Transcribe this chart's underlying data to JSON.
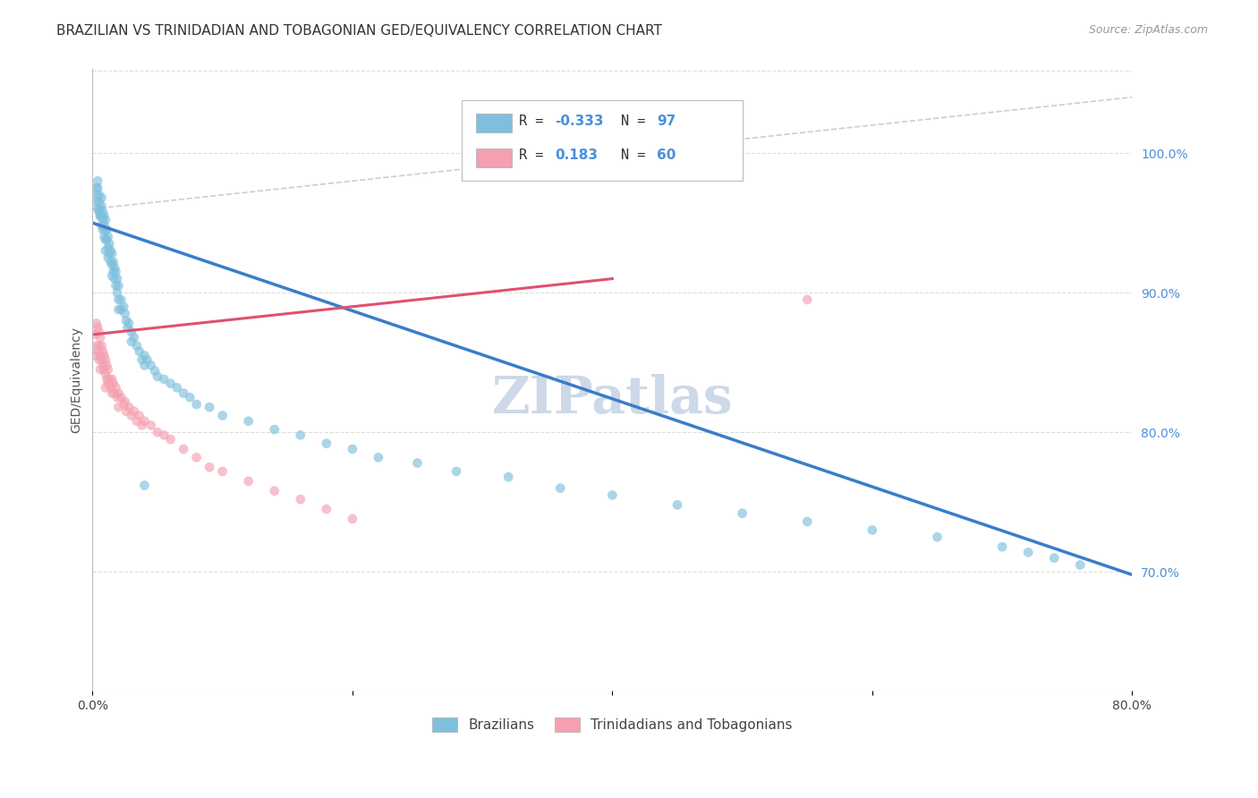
{
  "title": "BRAZILIAN VS TRINIDADIAN AND TOBAGONIAN GED/EQUIVALENCY CORRELATION CHART",
  "source": "Source: ZipAtlas.com",
  "ylabel": "GED/Equivalency",
  "xlim": [
    0.0,
    0.8
  ],
  "ylim": [
    0.615,
    1.06
  ],
  "x_ticks": [
    0.0,
    0.2,
    0.4,
    0.6,
    0.8
  ],
  "x_tick_labels": [
    "0.0%",
    "",
    "",
    "",
    "80.0%"
  ],
  "y_ticks_right": [
    0.7,
    0.8,
    0.9,
    1.0
  ],
  "y_tick_labels_right": [
    "70.0%",
    "80.0%",
    "90.0%",
    "100.0%"
  ],
  "blue_color": "#7fbfdd",
  "pink_color": "#f4a0b0",
  "blue_line_color": "#3a7dc9",
  "pink_line_color": "#e05070",
  "ref_line_color": "#d0b8c8",
  "watermark": "ZIPatlas",
  "legend_label_blue": "Brazilians",
  "legend_label_pink": "Trinidadians and Tobagonians",
  "blue_scatter_x": [
    0.003,
    0.003,
    0.003,
    0.004,
    0.004,
    0.004,
    0.005,
    0.005,
    0.005,
    0.006,
    0.006,
    0.006,
    0.007,
    0.007,
    0.007,
    0.007,
    0.008,
    0.008,
    0.008,
    0.009,
    0.009,
    0.009,
    0.01,
    0.01,
    0.01,
    0.01,
    0.011,
    0.011,
    0.012,
    0.012,
    0.012,
    0.013,
    0.013,
    0.014,
    0.014,
    0.015,
    0.015,
    0.015,
    0.016,
    0.016,
    0.017,
    0.017,
    0.018,
    0.018,
    0.019,
    0.019,
    0.02,
    0.02,
    0.02,
    0.022,
    0.022,
    0.024,
    0.025,
    0.026,
    0.027,
    0.028,
    0.03,
    0.03,
    0.032,
    0.034,
    0.036,
    0.038,
    0.04,
    0.04,
    0.042,
    0.045,
    0.048,
    0.05,
    0.055,
    0.06,
    0.065,
    0.07,
    0.075,
    0.08,
    0.09,
    0.1,
    0.12,
    0.14,
    0.16,
    0.18,
    0.2,
    0.22,
    0.25,
    0.28,
    0.32,
    0.36,
    0.4,
    0.45,
    0.5,
    0.55,
    0.6,
    0.65,
    0.7,
    0.72,
    0.74,
    0.76,
    0.04
  ],
  "blue_scatter_y": [
    0.975,
    0.97,
    0.965,
    0.98,
    0.975,
    0.96,
    0.97,
    0.965,
    0.958,
    0.955,
    0.96,
    0.955,
    0.968,
    0.962,
    0.955,
    0.948,
    0.958,
    0.952,
    0.945,
    0.955,
    0.948,
    0.94,
    0.952,
    0.945,
    0.938,
    0.93,
    0.945,
    0.938,
    0.94,
    0.932,
    0.925,
    0.935,
    0.928,
    0.93,
    0.922,
    0.928,
    0.92,
    0.912,
    0.922,
    0.915,
    0.918,
    0.91,
    0.915,
    0.905,
    0.91,
    0.9,
    0.905,
    0.895,
    0.888,
    0.895,
    0.888,
    0.89,
    0.885,
    0.88,
    0.875,
    0.878,
    0.872,
    0.865,
    0.868,
    0.862,
    0.858,
    0.852,
    0.855,
    0.848,
    0.852,
    0.848,
    0.844,
    0.84,
    0.838,
    0.835,
    0.832,
    0.828,
    0.825,
    0.82,
    0.818,
    0.812,
    0.808,
    0.802,
    0.798,
    0.792,
    0.788,
    0.782,
    0.778,
    0.772,
    0.768,
    0.76,
    0.755,
    0.748,
    0.742,
    0.736,
    0.73,
    0.725,
    0.718,
    0.714,
    0.71,
    0.705,
    0.762
  ],
  "pink_scatter_x": [
    0.002,
    0.002,
    0.003,
    0.003,
    0.004,
    0.004,
    0.005,
    0.005,
    0.005,
    0.006,
    0.006,
    0.006,
    0.007,
    0.007,
    0.008,
    0.008,
    0.009,
    0.009,
    0.01,
    0.01,
    0.01,
    0.011,
    0.011,
    0.012,
    0.012,
    0.013,
    0.014,
    0.015,
    0.015,
    0.016,
    0.017,
    0.018,
    0.019,
    0.02,
    0.02,
    0.022,
    0.024,
    0.025,
    0.026,
    0.028,
    0.03,
    0.032,
    0.034,
    0.036,
    0.038,
    0.04,
    0.045,
    0.05,
    0.055,
    0.06,
    0.07,
    0.08,
    0.09,
    0.1,
    0.12,
    0.14,
    0.16,
    0.18,
    0.2,
    0.55
  ],
  "pink_scatter_y": [
    0.87,
    0.855,
    0.878,
    0.862,
    0.875,
    0.858,
    0.872,
    0.862,
    0.852,
    0.868,
    0.855,
    0.845,
    0.862,
    0.852,
    0.858,
    0.848,
    0.855,
    0.845,
    0.852,
    0.842,
    0.832,
    0.848,
    0.838,
    0.845,
    0.835,
    0.838,
    0.832,
    0.838,
    0.828,
    0.835,
    0.828,
    0.832,
    0.825,
    0.828,
    0.818,
    0.825,
    0.82,
    0.822,
    0.815,
    0.818,
    0.812,
    0.815,
    0.808,
    0.812,
    0.805,
    0.808,
    0.805,
    0.8,
    0.798,
    0.795,
    0.788,
    0.782,
    0.775,
    0.772,
    0.765,
    0.758,
    0.752,
    0.745,
    0.738,
    0.895
  ],
  "blue_line_x": [
    0.0,
    0.8
  ],
  "blue_line_y": [
    0.95,
    0.698
  ],
  "pink_line_x": [
    0.0,
    0.4
  ],
  "pink_line_y": [
    0.87,
    0.91
  ],
  "ref_line_x": [
    0.0,
    0.8
  ],
  "ref_line_y": [
    0.96,
    1.04
  ],
  "grid_color": "#dddddd",
  "background_color": "#ffffff",
  "title_fontsize": 11,
  "axis_label_fontsize": 10,
  "tick_fontsize": 10,
  "legend_fontsize": 11,
  "watermark_fontsize": 42,
  "watermark_color": "#cdd8e8",
  "source_fontsize": 9
}
